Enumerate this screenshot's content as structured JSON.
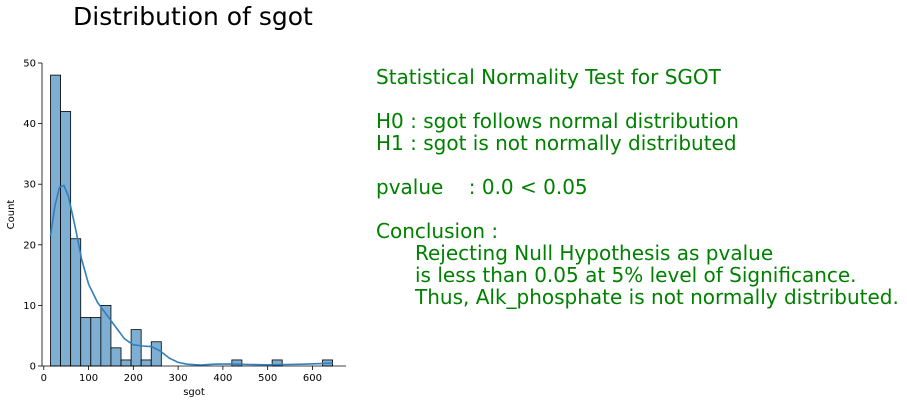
{
  "chart_data": {
    "type": "bar",
    "title": "Distribution of sgot",
    "xlabel": "sgot",
    "ylabel": "Count",
    "xlim": [
      -4,
      675
    ],
    "ylim": [
      0,
      50
    ],
    "xticks": [
      0,
      100,
      200,
      300,
      400,
      500,
      600
    ],
    "yticks": [
      0,
      10,
      20,
      30,
      40,
      50
    ],
    "bin_width": 22.5,
    "bins": [
      {
        "x0": 15,
        "x1": 37.5,
        "count": 48
      },
      {
        "x0": 37.5,
        "x1": 60,
        "count": 42
      },
      {
        "x0": 60,
        "x1": 82.5,
        "count": 21
      },
      {
        "x0": 82.5,
        "x1": 105,
        "count": 8
      },
      {
        "x0": 105,
        "x1": 127.5,
        "count": 8
      },
      {
        "x0": 127.5,
        "x1": 150,
        "count": 10
      },
      {
        "x0": 150,
        "x1": 172.5,
        "count": 3
      },
      {
        "x0": 172.5,
        "x1": 195,
        "count": 1
      },
      {
        "x0": 195,
        "x1": 217.5,
        "count": 6
      },
      {
        "x0": 217.5,
        "x1": 240,
        "count": 1
      },
      {
        "x0": 240,
        "x1": 262.5,
        "count": 4
      },
      {
        "x0": 420,
        "x1": 442.5,
        "count": 1
      },
      {
        "x0": 510,
        "x1": 532.5,
        "count": 1
      },
      {
        "x0": 622.5,
        "x1": 645,
        "count": 1
      }
    ],
    "kde": {
      "x": [
        15,
        25,
        35,
        45,
        55,
        70,
        85,
        100,
        120,
        140,
        160,
        180,
        200,
        220,
        240,
        260,
        280,
        300,
        320,
        350,
        380,
        420,
        460,
        500,
        540,
        580,
        620,
        645
      ],
      "y": [
        21.5,
        26.5,
        29.5,
        29.8,
        28,
        23,
        17.5,
        13.5,
        10.5,
        8.5,
        6.5,
        4.5,
        3.5,
        3.3,
        3.2,
        2.5,
        1.3,
        0.6,
        0.3,
        0.15,
        0.3,
        0.35,
        0.25,
        0.2,
        0.25,
        0.3,
        0.4,
        0.5
      ]
    },
    "bar_color": "#7eaed1",
    "bar_edge": "#000000",
    "kde_color": "#2f7fc1",
    "grid": false
  },
  "stats": {
    "color": "#008000",
    "heading": "Statistical Normality Test for SGOT",
    "h0": "H0 : sgot follows normal distribution",
    "h1": "H1 : sgot is not normally distributed",
    "pvalue": "pvalue    : 0.0 < 0.05",
    "conclusion_label": "Conclusion :",
    "conclusion_lines": [
      "Rejecting Null Hypothesis as pvalue",
      "is less than 0.05 at 5% level of Significance.",
      "Thus, Alk_phosphate is not normally distributed."
    ]
  }
}
